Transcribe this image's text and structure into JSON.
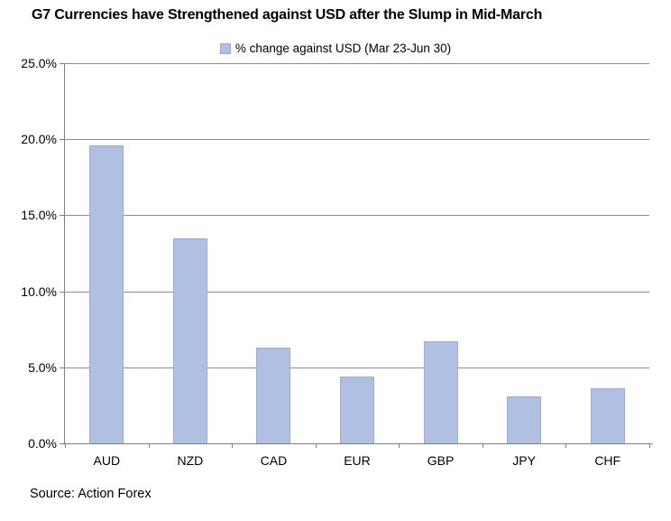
{
  "chart": {
    "title": "G7 Currencies have Strengthened against USD after the Slump in Mid-March",
    "legend_label": "% change against USD (Mar 23-Jun 30)",
    "source": "Source: Action Forex"
  },
  "chart_data": {
    "type": "bar",
    "title": "G7 Currencies have Strengthened against USD after the Slump in Mid-March",
    "categories": [
      "AUD",
      "NZD",
      "CAD",
      "EUR",
      "GBP",
      "JPY",
      "CHF"
    ],
    "series": [
      {
        "name": "% change against USD (Mar 23-Jun 30)",
        "values": [
          19.6,
          13.5,
          6.3,
          4.4,
          6.7,
          3.1,
          3.6
        ]
      }
    ],
    "unit": "%",
    "xlabel": "",
    "ylabel": "",
    "ylim": [
      0,
      25
    ],
    "ytick_step": 5,
    "ytick_labels": [
      "0.0%",
      "5.0%",
      "10.0%",
      "15.0%",
      "20.0%",
      "25.0%"
    ],
    "grid": true,
    "legend_position": "top-center",
    "colors": {
      "bar_fill": "#b0c0e2",
      "bar_border": "#9aacd2",
      "gridline": "#8c8c8c",
      "axis": "#7f7f7f",
      "text": "#000000"
    },
    "source": "Source: Action Forex"
  }
}
